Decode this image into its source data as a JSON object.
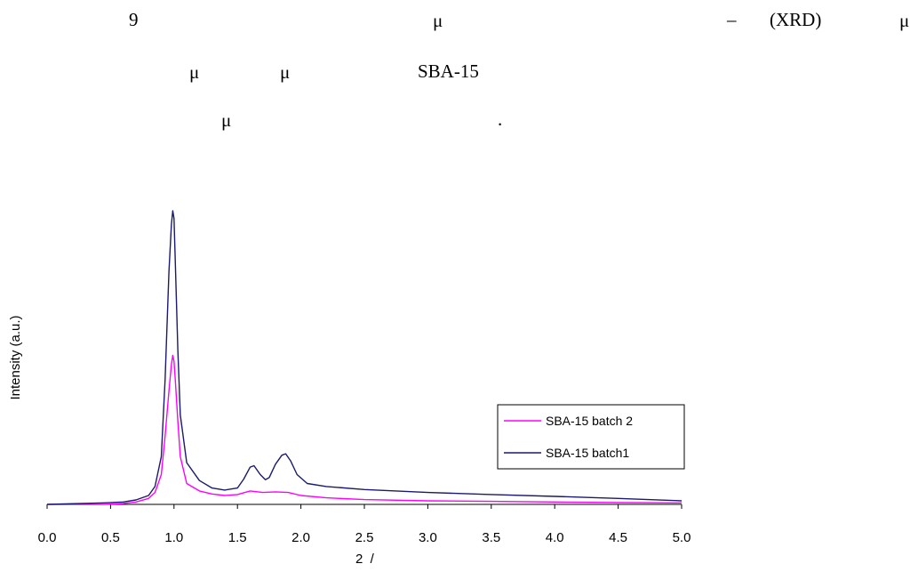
{
  "paragraph": {
    "line1": [
      "9",
      "μ",
      "–",
      "(XRD)",
      "μ"
    ],
    "line2": [
      "μ",
      "μ",
      "SBA-15"
    ],
    "line3": [
      "μ",
      "."
    ]
  },
  "chart_data": {
    "type": "line",
    "xlabel": "2  /",
    "ylabel": "Intensity (a.u.)",
    "xlim": [
      0.0,
      5.0
    ],
    "x_ticks": [
      "0.0",
      "0.5",
      "1.0",
      "1.5",
      "2.0",
      "2.5",
      "3.0",
      "3.5",
      "4.0",
      "4.5",
      "5.0"
    ],
    "y_ticks_shown": false,
    "grid": false,
    "legend_position": "right",
    "series": [
      {
        "name": "SBA-15 batch 2",
        "color": "#ff00ff",
        "x": [
          0.0,
          0.45,
          0.6,
          0.7,
          0.8,
          0.85,
          0.9,
          0.93,
          0.96,
          0.98,
          0.99,
          1.0,
          1.01,
          1.03,
          1.05,
          1.1,
          1.2,
          1.3,
          1.4,
          1.5,
          1.6,
          1.7,
          1.8,
          1.9,
          2.0,
          2.2,
          2.5,
          3.0,
          3.5,
          4.0,
          4.5,
          5.0
        ],
        "y": [
          0.0,
          0.0,
          0.003,
          0.008,
          0.02,
          0.04,
          0.1,
          0.23,
          0.38,
          0.47,
          0.5,
          0.48,
          0.42,
          0.28,
          0.16,
          0.07,
          0.045,
          0.035,
          0.03,
          0.033,
          0.045,
          0.04,
          0.042,
          0.04,
          0.03,
          0.022,
          0.016,
          0.012,
          0.01,
          0.008,
          0.006,
          0.005
        ]
      },
      {
        "name": "SBA-15 batch1",
        "color": "#1a1a6e",
        "x": [
          0.0,
          0.45,
          0.6,
          0.7,
          0.8,
          0.85,
          0.9,
          0.93,
          0.96,
          0.98,
          0.99,
          1.0,
          1.01,
          1.03,
          1.05,
          1.1,
          1.2,
          1.3,
          1.4,
          1.5,
          1.55,
          1.6,
          1.63,
          1.68,
          1.72,
          1.75,
          1.8,
          1.85,
          1.88,
          1.92,
          1.97,
          2.05,
          2.2,
          2.5,
          3.0,
          3.5,
          4.0,
          4.5,
          5.0
        ],
        "y": [
          0.0,
          0.005,
          0.008,
          0.015,
          0.03,
          0.06,
          0.16,
          0.42,
          0.78,
          0.94,
          0.985,
          0.96,
          0.82,
          0.52,
          0.3,
          0.14,
          0.08,
          0.055,
          0.048,
          0.055,
          0.085,
          0.125,
          0.13,
          0.1,
          0.083,
          0.09,
          0.135,
          0.165,
          0.17,
          0.145,
          0.1,
          0.07,
          0.06,
          0.05,
          0.04,
          0.033,
          0.027,
          0.02,
          0.012
        ]
      }
    ]
  }
}
